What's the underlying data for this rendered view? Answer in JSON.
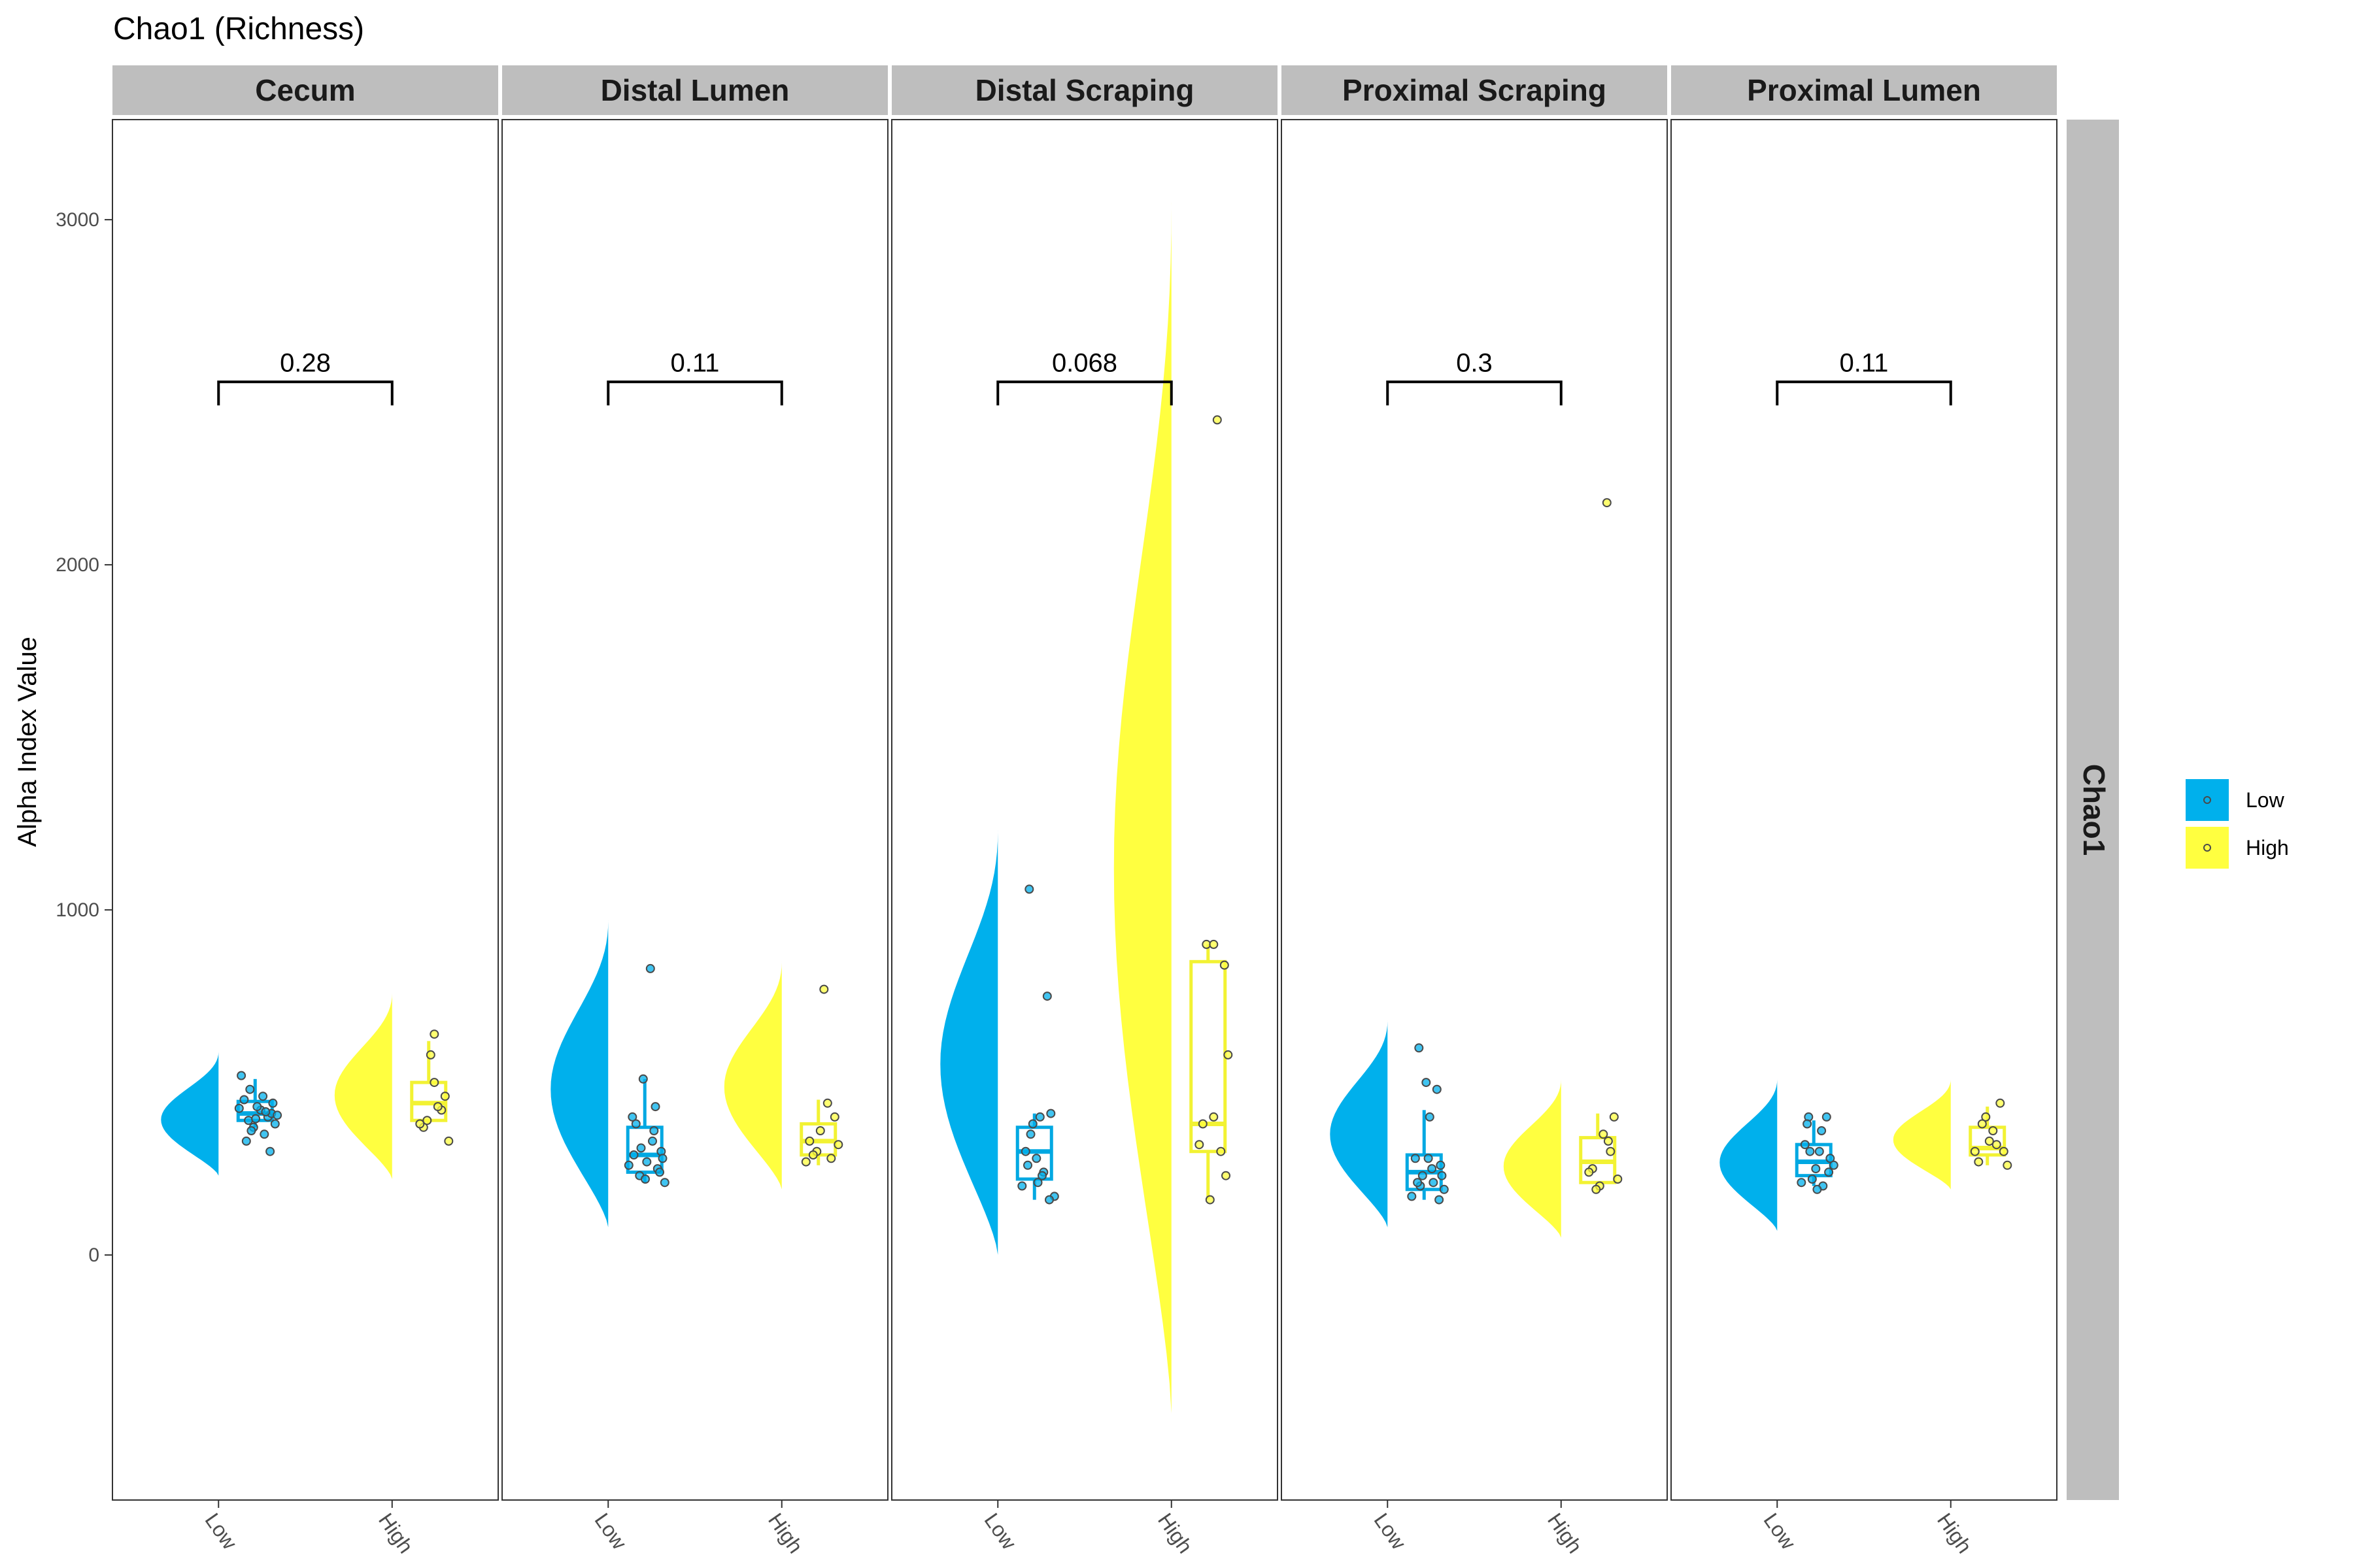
{
  "chart_data": {
    "type": "raincloud",
    "title": "Chao1 (Richness)",
    "ylabel": "Alpha Index Value",
    "xlabel": "",
    "facet_row_label": "Chao1",
    "ylim": [
      -710,
      3290
    ],
    "yticks": [
      0,
      1000,
      2000,
      3000
    ],
    "grid": false,
    "legend_position": "right",
    "categories": [
      "Low",
      "High"
    ],
    "legend": [
      {
        "label": "Low",
        "color": "#00B0EC"
      },
      {
        "label": "High",
        "color": "#FFFF40"
      }
    ],
    "panels": [
      {
        "name": "Cecum",
        "pvalue": "0.28",
        "bracket_y": 2530,
        "groups": [
          {
            "group": "Low",
            "density_range": [
              230,
              590
            ],
            "box": [
              370,
              390,
              410,
              445,
              510
            ],
            "points": [
              [
                0.05,
                420
              ],
              [
                -0.12,
                390
              ],
              [
                0.15,
                400
              ],
              [
                -0.05,
                370
              ],
              [
                0.2,
                410
              ],
              [
                -0.18,
                450
              ],
              [
                0.1,
                350
              ],
              [
                -0.1,
                480
              ],
              [
                0.25,
                380
              ],
              [
                0.0,
                430
              ],
              [
                -0.22,
                520
              ],
              [
                0.18,
                300
              ],
              [
                -0.15,
                330
              ],
              [
                0.08,
                460
              ],
              [
                0.22,
                440
              ],
              [
                -0.02,
                395
              ],
              [
                0.12,
                415
              ],
              [
                -0.08,
                360
              ],
              [
                0.28,
                405
              ],
              [
                -0.25,
                425
              ]
            ]
          },
          {
            "group": "High",
            "density_range": [
              220,
              760
            ],
            "box": [
              380,
              390,
              440,
              500,
              620
            ],
            "points": [
              [
                -0.1,
                370
              ],
              [
                0.05,
                640
              ],
              [
                0.2,
                460
              ],
              [
                -0.05,
                390
              ],
              [
                0.15,
                420
              ],
              [
                0.0,
                580
              ],
              [
                -0.15,
                380
              ],
              [
                0.1,
                430
              ],
              [
                0.25,
                330
              ],
              [
                0.05,
                500
              ]
            ]
          }
        ]
      },
      {
        "name": "Distal Lumen",
        "pvalue": "0.11",
        "bracket_y": 2530,
        "groups": [
          {
            "group": "Low",
            "density_range": [
              80,
              970
            ],
            "box": [
              210,
              240,
              290,
              370,
              510
            ],
            "points": [
              [
                -0.2,
                400
              ],
              [
                0.05,
                830
              ],
              [
                -0.05,
                510
              ],
              [
                0.12,
                430
              ],
              [
                -0.15,
                380
              ],
              [
                0.2,
                300
              ],
              [
                0.0,
                270
              ],
              [
                -0.1,
                230
              ],
              [
                0.15,
                250
              ],
              [
                -0.25,
                260
              ],
              [
                0.25,
                210
              ],
              [
                0.08,
                330
              ],
              [
                -0.18,
                290
              ],
              [
                0.18,
                240
              ],
              [
                -0.02,
                220
              ],
              [
                0.1,
                360
              ],
              [
                0.22,
                280
              ],
              [
                -0.08,
                310
              ]
            ]
          },
          {
            "group": "High",
            "density_range": [
              190,
              850
            ],
            "box": [
              260,
              290,
              330,
              380,
              450
            ],
            "points": [
              [
                0.05,
                770
              ],
              [
                -0.15,
                330
              ],
              [
                0.1,
                440
              ],
              [
                -0.05,
                300
              ],
              [
                0.2,
                400
              ],
              [
                0.0,
                360
              ],
              [
                -0.2,
                270
              ],
              [
                0.15,
                280
              ],
              [
                0.25,
                320
              ],
              [
                -0.1,
                290
              ]
            ]
          }
        ]
      },
      {
        "name": "Distal Scraping",
        "pvalue": "0.068",
        "bracket_y": 2530,
        "groups": [
          {
            "group": "Low",
            "density_range": [
              0,
              1230
            ],
            "box": [
              160,
              220,
              300,
              370,
              410
            ],
            "points": [
              [
                -0.1,
                1060
              ],
              [
                0.15,
                750
              ],
              [
                0.05,
                400
              ],
              [
                -0.05,
                380
              ],
              [
                0.2,
                410
              ],
              [
                -0.15,
                300
              ],
              [
                0.0,
                280
              ],
              [
                0.1,
                240
              ],
              [
                -0.2,
                200
              ],
              [
                0.25,
                170
              ],
              [
                0.08,
                230
              ],
              [
                -0.12,
                260
              ],
              [
                0.18,
                160
              ],
              [
                0.02,
                210
              ],
              [
                -0.08,
                350
              ]
            ]
          },
          {
            "group": "High",
            "density_range": [
              -460,
              3050
            ],
            "box": [
              160,
              300,
              380,
              850,
              900
            ],
            "points": [
              [
                0.1,
                2420
              ],
              [
                -0.05,
                900
              ],
              [
                0.05,
                900
              ],
              [
                0.2,
                840
              ],
              [
                0.25,
                580
              ],
              [
                -0.1,
                380
              ],
              [
                0.15,
                300
              ],
              [
                0.22,
                230
              ],
              [
                -0.15,
                320
              ],
              [
                0.0,
                160
              ],
              [
                0.05,
                400
              ]
            ]
          }
        ]
      },
      {
        "name": "Proximal Scraping",
        "pvalue": "0.3",
        "bracket_y": 2530,
        "groups": [
          {
            "group": "Low",
            "density_range": [
              80,
              680
            ],
            "box": [
              160,
              190,
              240,
              290,
              420
            ],
            "points": [
              [
                -0.1,
                600
              ],
              [
                0.0,
                500
              ],
              [
                0.15,
                480
              ],
              [
                0.05,
                400
              ],
              [
                -0.15,
                280
              ],
              [
                0.2,
                260
              ],
              [
                -0.05,
                230
              ],
              [
                0.1,
                210
              ],
              [
                0.25,
                190
              ],
              [
                -0.2,
                170
              ],
              [
                0.08,
                250
              ],
              [
                -0.08,
                200
              ],
              [
                0.18,
                160
              ],
              [
                0.03,
                280
              ],
              [
                -0.12,
                210
              ],
              [
                0.22,
                230
              ]
            ]
          },
          {
            "group": "High",
            "density_range": [
              50,
              510
            ],
            "box": [
              180,
              210,
              270,
              340,
              410
            ],
            "points": [
              [
                0.1,
                2180
              ],
              [
                0.05,
                350
              ],
              [
                0.2,
                400
              ],
              [
                -0.1,
                250
              ],
              [
                0.15,
                300
              ],
              [
                0.0,
                200
              ],
              [
                -0.05,
                190
              ],
              [
                0.12,
                330
              ],
              [
                0.25,
                220
              ],
              [
                -0.15,
                240
              ]
            ]
          }
        ]
      },
      {
        "name": "Proximal Lumen",
        "pvalue": "0.11",
        "bracket_y": 2530,
        "groups": [
          {
            "group": "Low",
            "density_range": [
              70,
              510
            ],
            "box": [
              200,
              230,
              270,
              320,
              390
            ],
            "points": [
              [
                -0.1,
                400
              ],
              [
                0.15,
                400
              ],
              [
                0.05,
                300
              ],
              [
                -0.15,
                320
              ],
              [
                0.2,
                280
              ],
              [
                0.0,
                250
              ],
              [
                -0.05,
                220
              ],
              [
                0.1,
                200
              ],
              [
                -0.2,
                210
              ],
              [
                0.25,
                260
              ],
              [
                0.08,
                360
              ],
              [
                -0.12,
                380
              ],
              [
                0.18,
                240
              ],
              [
                0.02,
                190
              ],
              [
                -0.08,
                300
              ]
            ]
          },
          {
            "group": "High",
            "density_range": [
              190,
              510
            ],
            "box": [
              260,
              290,
              310,
              370,
              430
            ],
            "points": [
              [
                0.15,
                440
              ],
              [
                -0.05,
                400
              ],
              [
                0.05,
                360
              ],
              [
                -0.1,
                380
              ],
              [
                0.2,
                300
              ],
              [
                0.1,
                320
              ],
              [
                -0.15,
                270
              ],
              [
                0.25,
                260
              ],
              [
                0.0,
                330
              ],
              [
                -0.2,
                300
              ]
            ]
          }
        ]
      }
    ]
  }
}
